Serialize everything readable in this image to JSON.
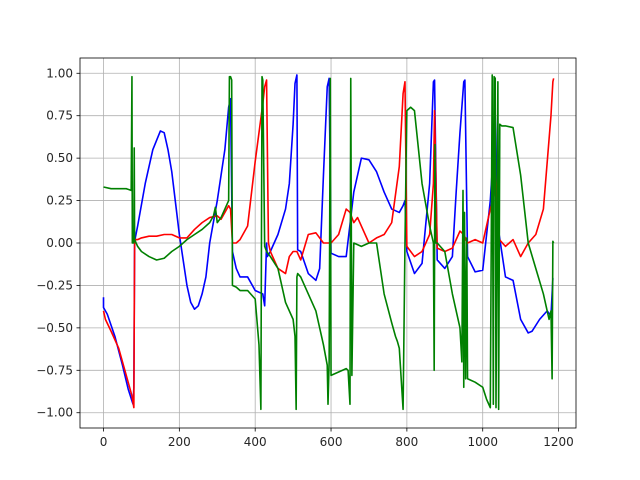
{
  "chart_data": {
    "type": "line",
    "title": "",
    "xlabel": "",
    "ylabel": "",
    "xlim": [
      -62,
      1246
    ],
    "ylim": [
      -1.09,
      1.09
    ],
    "xticks": [
      0,
      200,
      400,
      600,
      800,
      1000,
      1200
    ],
    "xtick_labels": [
      "0",
      "200",
      "400",
      "600",
      "800",
      "1000",
      "1200"
    ],
    "yticks": [
      -1.0,
      -0.75,
      -0.5,
      -0.25,
      0.0,
      0.25,
      0.5,
      0.75,
      1.0
    ],
    "ytick_labels": [
      "−1.00",
      "−0.75",
      "−0.50",
      "−0.25",
      "0.00",
      "0.25",
      "0.50",
      "0.75",
      "1.00"
    ],
    "grid": true,
    "legend": "none",
    "series": [
      {
        "color": "#0000ff",
        "x": [
          0,
          0,
          10,
          30,
          50,
          65,
          75,
          78,
          80,
          82,
          90,
          110,
          130,
          150,
          160,
          170,
          180,
          200,
          220,
          230,
          240,
          250,
          260,
          270,
          280,
          300,
          320,
          330,
          335,
          340,
          350,
          360,
          380,
          400,
          420,
          425,
          430,
          432,
          440,
          460,
          480,
          490,
          500,
          505,
          510,
          512,
          520,
          540,
          560,
          570,
          580,
          590,
          595,
          600,
          620,
          640,
          660,
          680,
          700,
          720,
          740,
          760,
          780,
          790,
          795,
          800,
          820,
          840,
          860,
          870,
          873,
          880,
          900,
          920,
          930,
          940,
          950,
          953,
          960,
          980,
          1000,
          1020,
          1030,
          1033,
          1040,
          1060,
          1080,
          1100,
          1120,
          1130,
          1150,
          1170,
          1180,
          1185,
          1187
        ],
        "y": [
          -0.32,
          -0.38,
          -0.42,
          -0.55,
          -0.72,
          -0.86,
          -0.93,
          -0.95,
          -0.85,
          0.01,
          0.1,
          0.35,
          0.55,
          0.66,
          0.65,
          0.55,
          0.42,
          0.05,
          -0.25,
          -0.35,
          -0.39,
          -0.37,
          -0.3,
          -0.2,
          0.0,
          0.25,
          0.55,
          0.8,
          0.85,
          -0.05,
          -0.15,
          -0.2,
          -0.2,
          -0.28,
          -0.3,
          -0.37,
          0.0,
          -0.08,
          -0.05,
          0.05,
          0.2,
          0.35,
          0.7,
          0.94,
          0.99,
          -0.04,
          -0.05,
          -0.18,
          -0.22,
          -0.15,
          0.4,
          0.92,
          0.97,
          -0.06,
          -0.08,
          -0.08,
          0.3,
          0.5,
          0.49,
          0.42,
          0.3,
          0.2,
          0.18,
          0.22,
          0.25,
          -0.05,
          -0.18,
          -0.12,
          0.35,
          0.95,
          0.96,
          -0.1,
          -0.15,
          -0.08,
          0.3,
          0.65,
          0.95,
          0.96,
          -0.08,
          -0.17,
          -0.16,
          0.25,
          0.6,
          0.75,
          0.1,
          -0.2,
          -0.22,
          -0.45,
          -0.53,
          -0.52,
          -0.45,
          -0.4,
          -0.43,
          -0.21,
          -0.21
        ]
      },
      {
        "color": "#ff0000",
        "x": [
          0,
          5,
          20,
          40,
          60,
          75,
          80,
          82,
          85,
          90,
          100,
          120,
          140,
          160,
          180,
          200,
          220,
          240,
          260,
          280,
          300,
          310,
          320,
          330,
          335,
          340,
          350,
          360,
          380,
          400,
          420,
          425,
          430,
          435,
          440,
          460,
          480,
          490,
          500,
          510,
          520,
          540,
          560,
          580,
          600,
          620,
          640,
          650,
          660,
          670,
          680,
          700,
          720,
          740,
          760,
          780,
          790,
          795,
          800,
          820,
          840,
          860,
          870,
          873,
          880,
          900,
          920,
          940,
          950,
          960,
          980,
          1000,
          1020,
          1030,
          1033,
          1040,
          1060,
          1080,
          1100,
          1120,
          1140,
          1160,
          1180,
          1185,
          1187
        ],
        "y": [
          -0.4,
          -0.45,
          -0.52,
          -0.62,
          -0.78,
          -0.9,
          -0.97,
          0.0,
          0.02,
          0.02,
          0.03,
          0.04,
          0.04,
          0.05,
          0.05,
          0.03,
          0.03,
          0.08,
          0.12,
          0.15,
          0.16,
          0.14,
          0.18,
          0.22,
          0.2,
          0.0,
          0.0,
          0.02,
          0.1,
          0.48,
          0.82,
          0.92,
          0.96,
          0.0,
          -0.05,
          -0.15,
          -0.18,
          -0.08,
          -0.05,
          -0.05,
          -0.1,
          0.05,
          0.06,
          0.0,
          0.0,
          0.05,
          0.2,
          0.18,
          0.12,
          0.15,
          0.1,
          0.0,
          0.03,
          0.05,
          0.12,
          0.45,
          0.88,
          0.95,
          -0.02,
          -0.08,
          -0.05,
          0.05,
          0.35,
          0.78,
          -0.03,
          -0.05,
          -0.03,
          0.07,
          0.05,
          0.0,
          0.02,
          0.0,
          0.2,
          0.28,
          0.4,
          0.03,
          -0.02,
          0.02,
          -0.08,
          0.0,
          0.05,
          0.2,
          0.75,
          0.95,
          0.97
        ]
      },
      {
        "color": "#008000",
        "x": [
          0,
          20,
          40,
          60,
          73,
          75,
          76,
          80,
          81,
          82,
          90,
          100,
          120,
          140,
          160,
          180,
          200,
          220,
          240,
          260,
          280,
          290,
          295,
          300,
          310,
          320,
          330,
          332,
          335,
          338,
          340,
          350,
          360,
          380,
          400,
          410,
          415,
          418,
          420,
          425,
          430,
          440,
          460,
          480,
          500,
          505,
          508,
          510,
          512,
          520,
          540,
          560,
          580,
          590,
          592,
          595,
          598,
          600,
          620,
          640,
          645,
          650,
          652,
          655,
          660,
          680,
          700,
          720,
          740,
          760,
          770,
          775,
          780,
          790,
          795,
          798,
          800,
          810,
          820,
          840,
          860,
          870,
          872,
          874,
          876,
          880,
          900,
          920,
          940,
          945,
          948,
          950,
          952,
          955,
          958,
          960,
          980,
          1000,
          1010,
          1020,
          1025,
          1028,
          1030,
          1033,
          1035,
          1040,
          1042,
          1045,
          1050,
          1060,
          1080,
          1100,
          1120,
          1140,
          1160,
          1170,
          1175,
          1180,
          1183,
          1185,
          1187
        ],
        "y": [
          0.33,
          0.32,
          0.32,
          0.32,
          0.31,
          0.98,
          0.0,
          0.0,
          0.56,
          0.02,
          -0.02,
          -0.05,
          -0.08,
          -0.1,
          -0.09,
          -0.05,
          -0.02,
          0.02,
          0.05,
          0.08,
          0.12,
          0.16,
          0.21,
          0.12,
          0.15,
          0.2,
          0.25,
          0.98,
          0.98,
          0.96,
          -0.25,
          -0.26,
          -0.28,
          -0.28,
          -0.33,
          -0.6,
          -0.98,
          0.98,
          0.96,
          -0.02,
          -0.05,
          -0.08,
          -0.15,
          -0.35,
          -0.45,
          -0.55,
          -0.98,
          -0.2,
          -0.18,
          -0.2,
          -0.3,
          -0.4,
          -0.6,
          -0.72,
          -0.95,
          -0.7,
          0.97,
          -0.78,
          -0.76,
          -0.74,
          -0.75,
          -0.95,
          0.97,
          -0.78,
          0.0,
          -0.02,
          0.0,
          0.0,
          -0.3,
          -0.47,
          -0.55,
          -0.58,
          -0.62,
          -0.98,
          0.0,
          0.5,
          0.78,
          0.8,
          0.78,
          0.35,
          0.1,
          0.0,
          -0.75,
          0.58,
          0.0,
          0.0,
          -0.05,
          -0.3,
          -0.5,
          -0.7,
          0.31,
          -0.85,
          0.18,
          -0.8,
          0.03,
          -0.8,
          -0.82,
          -0.85,
          -0.92,
          -0.97,
          0.99,
          -0.95,
          0.98,
          0.97,
          -0.97,
          0.95,
          -0.98,
          0.7,
          0.69,
          0.69,
          0.68,
          0.4,
          0.0,
          -0.15,
          -0.3,
          -0.4,
          -0.45,
          -0.4,
          -0.8,
          0.01,
          0.0
        ]
      }
    ]
  }
}
